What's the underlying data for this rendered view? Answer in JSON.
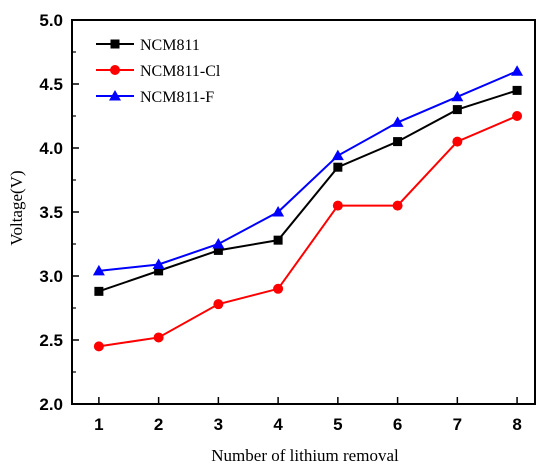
{
  "chart_data": {
    "type": "line",
    "xlabel": "Number of lithium removal",
    "ylabel": "Voltage(V)",
    "x": [
      1,
      2,
      3,
      4,
      5,
      6,
      7,
      8
    ],
    "xlim": [
      0.55,
      8.3
    ],
    "ylim": [
      2.0,
      5.0
    ],
    "x_ticks": [
      "1",
      "2",
      "3",
      "4",
      "5",
      "6",
      "7",
      "8"
    ],
    "y_ticks": [
      "2.0",
      "2.5",
      "3.0",
      "3.5",
      "4.0",
      "4.5",
      "5.0"
    ],
    "grid": false,
    "legend_position": "top-left",
    "series": [
      {
        "name": "NCM811",
        "color": "#000000",
        "marker": "square",
        "values": [
          2.88,
          3.04,
          3.2,
          3.28,
          3.85,
          4.05,
          4.3,
          4.45
        ]
      },
      {
        "name": "NCM811-Cl",
        "color": "#ff0000",
        "marker": "circle",
        "values": [
          2.45,
          2.52,
          2.78,
          2.9,
          3.55,
          3.55,
          4.05,
          4.25
        ]
      },
      {
        "name": "NCM811-F",
        "color": "#0000ff",
        "marker": "triangle",
        "values": [
          3.04,
          3.09,
          3.25,
          3.5,
          3.94,
          4.2,
          4.4,
          4.6
        ]
      }
    ]
  }
}
